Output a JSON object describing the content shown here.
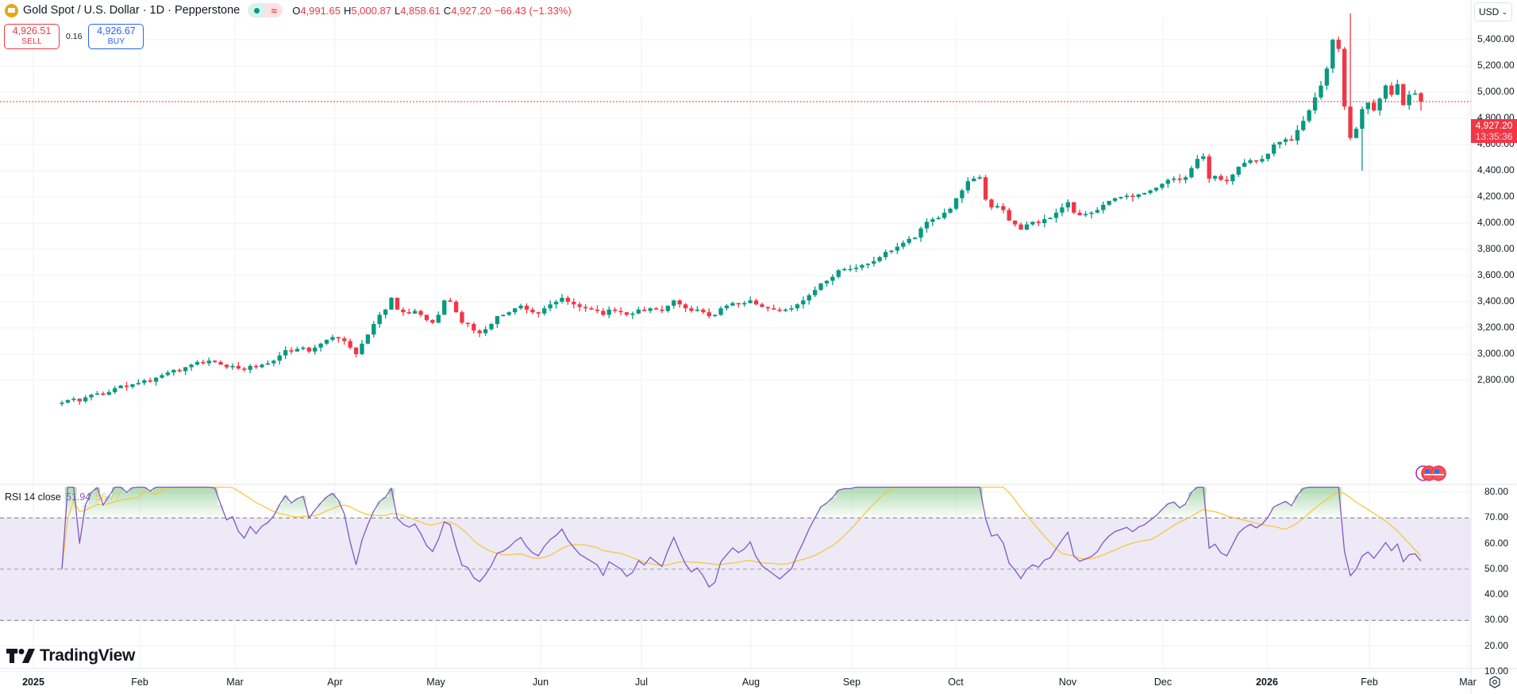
{
  "header": {
    "symbol_title": "Gold Spot / U.S. Dollar · 1D · Pepperstone",
    "ohlc": {
      "o_label": "O",
      "o_value": "4,991.65",
      "h_label": "H",
      "h_value": "5,000.87",
      "l_label": "L",
      "l_value": "4,858.61",
      "c_label": "C",
      "c_value": "4,927.20",
      "change": "−66.43 (−1.33%)"
    },
    "market_status_icon": "market-open-dot",
    "delay_icon": "approx-icon"
  },
  "trade": {
    "sell_price": "4,926.51",
    "sell_label": "SELL",
    "spread": "0.16",
    "buy_price": "4,926.67",
    "buy_label": "BUY"
  },
  "currency_select": {
    "value": "USD"
  },
  "last_price_tag": {
    "price": "4,927.20",
    "countdown": "13:35:36"
  },
  "rsi_legend": {
    "name": "RSI 14 close",
    "rsi_value": "51.94",
    "ma_value": "56.77"
  },
  "branding": {
    "logo_text": "TradingView"
  },
  "colors": {
    "up": "#089981",
    "down": "#f23645",
    "rsi_line": "#7e57c2",
    "rsi_ma": "#f5c842",
    "rsi_band": "#ede9f7",
    "grid": "#f0f0f3",
    "text": "#131722",
    "buy": "#2962ff"
  },
  "chart_data": [
    {
      "type": "candlestick",
      "title": "Gold Spot / U.S. Dollar · 1D · Pepperstone",
      "xlabel": "",
      "ylabel": "USD",
      "ylim": [
        2700,
        5600
      ],
      "y_ticks": [
        "5,400.00",
        "5,200.00",
        "5,000.00",
        "4,800.00",
        "4,600.00",
        "4,400.00",
        "4,200.00",
        "4,000.00",
        "3,800.00",
        "3,600.00",
        "3,400.00",
        "3,200.00",
        "3,000.00",
        "2,800.00"
      ],
      "x_ticks": [
        "2025",
        "Feb",
        "Mar",
        "Apr",
        "May",
        "Jun",
        "Jul",
        "Aug",
        "Sep",
        "Oct",
        "Nov",
        "Dec",
        "2026",
        "Feb",
        "Mar"
      ],
      "last": {
        "open": 4991.65,
        "high": 5000.87,
        "low": 4858.61,
        "close": 4927.2,
        "change": -66.43,
        "change_pct": -1.33
      },
      "approx_monthly_closes": {
        "2025-01": 2800,
        "2025-02": 2860,
        "2025-03": 3120,
        "2025-04": 3290,
        "2025-05": 3290,
        "2025-06": 3300,
        "2025-07": 3290,
        "2025-08": 3440,
        "2025-09": 3860,
        "2025-10": 4000,
        "2025-11": 4220,
        "2025-12": 4320,
        "2026-01": 4880,
        "2026-02": 4927
      },
      "closes": [
        2630,
        2650,
        2660,
        2640,
        2670,
        2690,
        2700,
        2690,
        2710,
        2740,
        2760,
        2750,
        2770,
        2780,
        2800,
        2790,
        2820,
        2840,
        2860,
        2880,
        2870,
        2900,
        2920,
        2940,
        2930,
        2950,
        2940,
        2920,
        2900,
        2910,
        2890,
        2880,
        2910,
        2900,
        2920,
        2930,
        2950,
        2990,
        3030,
        3020,
        3040,
        3050,
        3020,
        3050,
        3080,
        3110,
        3130,
        3120,
        3100,
        3050,
        3000,
        3080,
        3150,
        3230,
        3300,
        3340,
        3430,
        3340,
        3320,
        3310,
        3330,
        3300,
        3260,
        3240,
        3300,
        3410,
        3400,
        3320,
        3240,
        3230,
        3180,
        3160,
        3190,
        3230,
        3290,
        3300,
        3320,
        3350,
        3370,
        3340,
        3320,
        3310,
        3350,
        3380,
        3400,
        3430,
        3400,
        3380,
        3360,
        3350,
        3340,
        3330,
        3300,
        3340,
        3330,
        3320,
        3300,
        3310,
        3340,
        3330,
        3350,
        3340,
        3330,
        3370,
        3410,
        3380,
        3350,
        3330,
        3340,
        3320,
        3290,
        3300,
        3350,
        3370,
        3390,
        3380,
        3390,
        3410,
        3380,
        3360,
        3350,
        3340,
        3330,
        3340,
        3350,
        3380,
        3410,
        3450,
        3490,
        3540,
        3560,
        3590,
        3640,
        3650,
        3650,
        3660,
        3680,
        3690,
        3710,
        3740,
        3780,
        3790,
        3820,
        3850,
        3880,
        3890,
        3960,
        4010,
        4030,
        4040,
        4080,
        4110,
        4190,
        4250,
        4320,
        4340,
        4350,
        4180,
        4120,
        4130,
        4100,
        4020,
        3990,
        3950,
        3990,
        4010,
        4000,
        4030,
        4040,
        4080,
        4120,
        4160,
        4080,
        4060,
        4070,
        4080,
        4100,
        4140,
        4170,
        4190,
        4200,
        4210,
        4200,
        4220,
        4230,
        4250,
        4270,
        4300,
        4330,
        4340,
        4330,
        4350,
        4420,
        4490,
        4510,
        4340,
        4360,
        4330,
        4320,
        4370,
        4430,
        4460,
        4480,
        4470,
        4490,
        4530,
        4600,
        4620,
        4640,
        4630,
        4710,
        4780,
        4860,
        4960,
        5050,
        5180,
        5400,
        5330,
        4890,
        4650,
        4720,
        4870,
        4920,
        4860,
        4950,
        5050,
        4980,
        5060,
        4900,
        4980,
        4990,
        4927.2
      ]
    },
    {
      "type": "line",
      "title": "RSI 14 close",
      "ylim": [
        10,
        82
      ],
      "y_ticks": [
        "80.00",
        "70.00",
        "60.00",
        "50.00",
        "40.00",
        "30.00",
        "20.00",
        "10.00"
      ],
      "band": [
        30,
        70
      ],
      "midline": 50,
      "series": [
        {
          "name": "RSI",
          "last": 51.94
        },
        {
          "name": "RSI-based MA",
          "last": 56.77
        }
      ]
    }
  ]
}
